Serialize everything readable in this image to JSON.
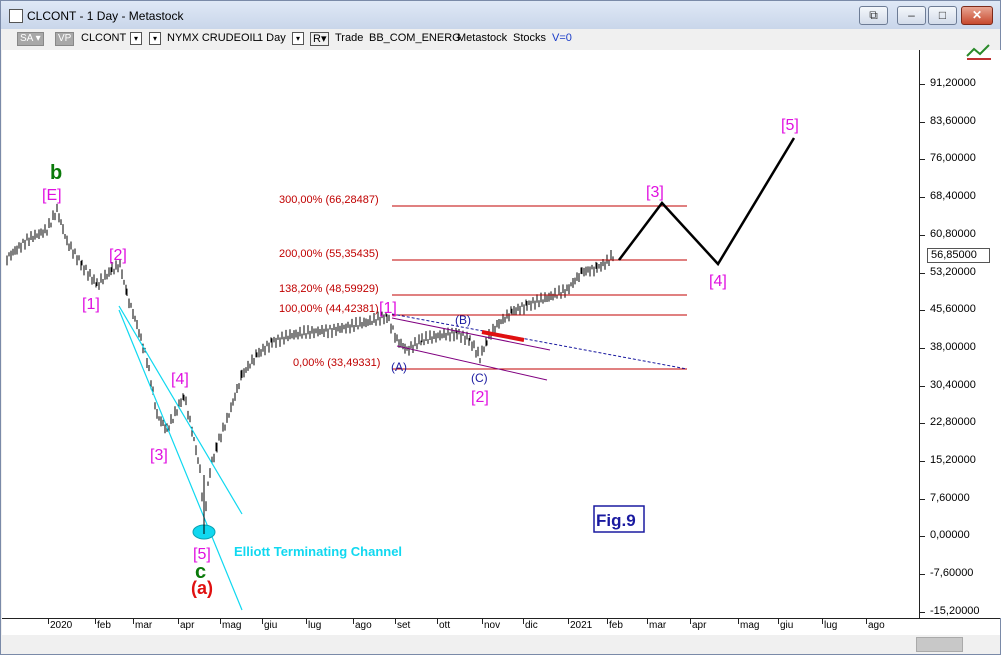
{
  "window": {
    "title": "CLCONT - 1 Day - Metastock",
    "buttons": {
      "restore_alt": "⧉",
      "minimize": "–",
      "maximize": "□",
      "close": "✕"
    }
  },
  "toolbar": {
    "sa_label": "SA",
    "vp_label": "VP",
    "symbol": "CLCONT",
    "exchange": "NYMX CRUDEOIL",
    "interval": "1 Day",
    "r_label": "R",
    "trade_label": "Trade",
    "provider": "BB_COM_ENERG",
    "source": "Metastock",
    "category": "Stocks",
    "volume": "V=0"
  },
  "y_axis": {
    "ticks": [
      "91,20000",
      "83,60000",
      "76,00000",
      "68,40000",
      "60,80000",
      "53,20000",
      "45,60000",
      "38,00000",
      "30,40000",
      "22,80000",
      "15,20000",
      "7,60000",
      "0,00000",
      "-7,60000",
      "-15,20000"
    ],
    "last_price": "56,85000"
  },
  "x_axis": {
    "labels": [
      "2020",
      "feb",
      "mar",
      "apr",
      "mag",
      "giu",
      "lug",
      "ago",
      "set",
      "ott",
      "nov",
      "dic",
      "2021",
      "feb",
      "mar",
      "apr",
      "mag",
      "giu",
      "lug",
      "ago"
    ]
  },
  "fib_levels": [
    {
      "label": "300,00% (66,28487)"
    },
    {
      "label": "200,00% (55,35435)"
    },
    {
      "label": "138,20% (48,59929)"
    },
    {
      "label": "100,00% (44,42381)"
    },
    {
      "label": "0,00% (33,49331)"
    }
  ],
  "wave_labels": {
    "b": "b",
    "E": "[E]",
    "w1": "[1]",
    "w2": "[2]",
    "w3": "[3]",
    "w4": "[4]",
    "w5": "[5]",
    "c": "c",
    "a_paren": "(a)",
    "new1": "[1]",
    "A": "(A)",
    "B": "(B)",
    "C": "(C)",
    "new2": "[2]",
    "proj3": "[3]",
    "proj4": "[4]",
    "proj5": "[5]"
  },
  "annotations": {
    "channel_label": "Elliott Terminating Channel",
    "fig_label": "Fig.9"
  },
  "colors": {
    "magenta": "#e010e0",
    "green": "#0a7a0a",
    "red": "#e01010",
    "navy": "#1a1aa0",
    "cyan": "#10d8f0",
    "fib": "#c00000"
  }
}
